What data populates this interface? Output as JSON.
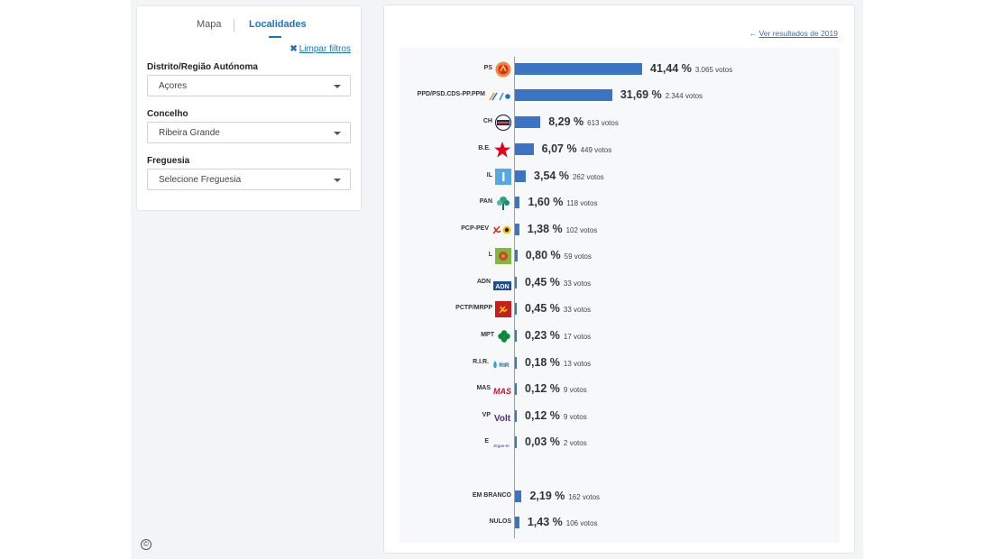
{
  "filters": {
    "tabs": [
      {
        "label": "Mapa"
      },
      {
        "label": "Localidades"
      }
    ],
    "clear_label": "Limpar filtros",
    "district": {
      "label": "Distrito/Região Autónoma",
      "value": "Açores"
    },
    "municipality": {
      "label": "Concelho",
      "value": "Ribeira Grande"
    },
    "parish": {
      "label": "Freguesia",
      "value": "Selecione Freguesia"
    }
  },
  "results": {
    "prev_link": "Ver resultados de 2019",
    "rows": [
      {
        "party": "PS",
        "percent_label": "41,44 %",
        "votes_label": "3.065 votos",
        "percent": 41.44,
        "votes": 3065,
        "logo": "ps-logo-icon"
      },
      {
        "party": "PPD/PSD.CDS-PP.PPM",
        "percent_label": "31,69 %",
        "votes_label": "2.344 votos",
        "percent": 31.69,
        "votes": 2344,
        "logo": "ppd-psd-cds-ppm-logo-icon"
      },
      {
        "party": "CH",
        "percent_label": "8,29 %",
        "votes_label": "613 votos",
        "percent": 8.29,
        "votes": 613,
        "logo": "chega-logo-icon"
      },
      {
        "party": "B.E.",
        "percent_label": "6,07 %",
        "votes_label": "449 votos",
        "percent": 6.07,
        "votes": 449,
        "logo": "be-star-logo-icon"
      },
      {
        "party": "IL",
        "percent_label": "3,54 %",
        "votes_label": "262 votos",
        "percent": 3.54,
        "votes": 262,
        "logo": "il-logo-icon"
      },
      {
        "party": "PAN",
        "percent_label": "1,60 %",
        "votes_label": "118 votos",
        "percent": 1.6,
        "votes": 118,
        "logo": "pan-tree-logo-icon"
      },
      {
        "party": "PCP-PEV",
        "percent_label": "1,38 %",
        "votes_label": "102 votos",
        "percent": 1.38,
        "votes": 102,
        "logo": "pcp-pev-logo-icon"
      },
      {
        "party": "L",
        "percent_label": "0,80 %",
        "votes_label": "59 votos",
        "percent": 0.8,
        "votes": 59,
        "logo": "livre-logo-icon"
      },
      {
        "party": "ADN",
        "percent_label": "0,45 %",
        "votes_label": "33 votos",
        "percent": 0.45,
        "votes": 33,
        "logo": "adn-logo-icon"
      },
      {
        "party": "PCTP/MRPP",
        "percent_label": "0,45 %",
        "votes_label": "33 votos",
        "percent": 0.45,
        "votes": 33,
        "logo": "pctp-mrpp-logo-icon"
      },
      {
        "party": "MPT",
        "percent_label": "0,23 %",
        "votes_label": "17 votos",
        "percent": 0.23,
        "votes": 17,
        "logo": "mpt-clover-logo-icon"
      },
      {
        "party": "R.I.R.",
        "percent_label": "0,18 %",
        "votes_label": "13 votos",
        "percent": 0.18,
        "votes": 13,
        "logo": "rir-logo-icon"
      },
      {
        "party": "MAS",
        "percent_label": "0,12 %",
        "votes_label": "9 votos",
        "percent": 0.12,
        "votes": 9,
        "logo": "mas-logo-icon"
      },
      {
        "party": "VP",
        "percent_label": "0,12 %",
        "votes_label": "9 votos",
        "percent": 0.12,
        "votes": 9,
        "logo": "volt-logo-icon"
      },
      {
        "party": "E",
        "percent_label": "0,03 %",
        "votes_label": "2 votos",
        "percent": 0.03,
        "votes": 2,
        "logo": "ergue-te-logo-icon"
      },
      {
        "party": "EM BRANCO",
        "percent_label": "2,19 %",
        "votes_label": "162 votos",
        "percent": 2.19,
        "votes": 162,
        "logo": ""
      },
      {
        "party": "NULOS",
        "percent_label": "1,43 %",
        "votes_label": "106 votos",
        "percent": 1.43,
        "votes": 106,
        "logo": ""
      }
    ]
  },
  "logo_texts": {
    "adn": "ADN",
    "mas": "MAS",
    "volt": "Volt",
    "ergue": "Ergue-te",
    "rir": "RIR"
  },
  "colors": {
    "bar": "#3b74c5",
    "accent": "#1a73c8"
  }
}
